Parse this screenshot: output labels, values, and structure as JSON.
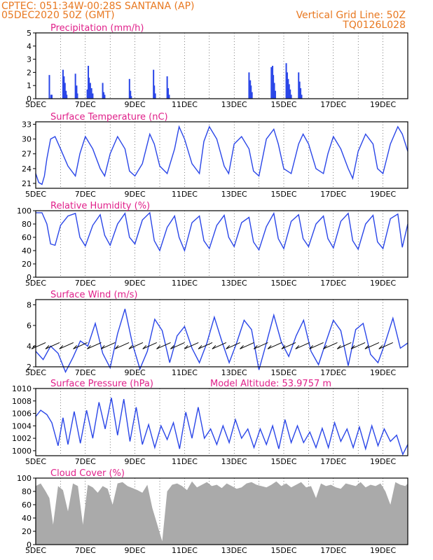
{
  "header": {
    "line1": "CPTEC:   051:34W-00:28S   SANTANA (AP)",
    "line2": "05DEC2020 50Z (GMT)",
    "grid_note": "Vertical Grid Line: 50Z",
    "code": "TQ0126L028"
  },
  "colors": {
    "header": "#e87820",
    "title": "#e0208a",
    "series": "#2a46e8",
    "cloud": "#aaaaaa"
  },
  "date_labels": [
    "5DEC",
    "7DEC",
    "9DEC",
    "11DEC",
    "13DEC",
    "15DEC",
    "17DEC",
    "19DEC"
  ],
  "chart_data": [
    {
      "type": "bar",
      "title": "Precipitation (mm/h)",
      "ylim": [
        0,
        5
      ],
      "yticks": [
        0,
        1,
        2,
        3,
        4,
        5
      ],
      "x": [
        0.55,
        0.62,
        0.65,
        1.1,
        1.14,
        1.18,
        1.22,
        1.25,
        1.6,
        1.65,
        1.68,
        2.08,
        2.12,
        2.15,
        2.2,
        2.25,
        2.3,
        2.7,
        2.74,
        2.78,
        3.78,
        3.82,
        3.85,
        4.75,
        4.78,
        4.82,
        5.3,
        5.34,
        5.38,
        8.6,
        8.65,
        8.68,
        8.72,
        9.5,
        9.55,
        9.58,
        9.62,
        9.66,
        10.1,
        10.14,
        10.18,
        10.22,
        10.26,
        10.3,
        10.6,
        10.64,
        10.68,
        10.72
      ],
      "values": [
        1.8,
        0.3,
        0.3,
        2.2,
        1.7,
        1.2,
        0.6,
        0.3,
        1.9,
        1.0,
        0.4,
        0.7,
        2.5,
        1.6,
        1.2,
        0.8,
        0.4,
        1.2,
        0.5,
        0.3,
        1.5,
        0.6,
        0.2,
        2.2,
        1.0,
        0.4,
        1.7,
        0.8,
        0.3,
        2.0,
        1.4,
        1.0,
        0.5,
        2.4,
        2.5,
        1.8,
        1.2,
        0.6,
        2.7,
        2.0,
        1.5,
        1.1,
        0.7,
        0.3,
        2.0,
        1.3,
        0.8,
        0.3
      ]
    },
    {
      "type": "line",
      "title": "Surface Temperature (nC)",
      "ylim": [
        20,
        33.5
      ],
      "yticks": [
        21,
        24,
        27,
        30,
        33
      ],
      "x": [
        0,
        0.12,
        0.25,
        0.35,
        0.45,
        0.6,
        0.78,
        1.0,
        1.3,
        1.6,
        1.78,
        2.0,
        2.3,
        2.6,
        2.78,
        3.0,
        3.3,
        3.6,
        3.78,
        4.0,
        4.3,
        4.6,
        4.78,
        5.0,
        5.3,
        5.6,
        5.78,
        6.0,
        6.3,
        6.6,
        6.78,
        7.0,
        7.3,
        7.6,
        7.78,
        8.0,
        8.3,
        8.6,
        8.78,
        9.0,
        9.3,
        9.6,
        9.78,
        10.0,
        10.3,
        10.6,
        10.78,
        11.0,
        11.3,
        11.6,
        11.78,
        12.0,
        12.3,
        12.6,
        12.78,
        13.0,
        13.3,
        13.6,
        13.78,
        14.0,
        14.3,
        14.6,
        14.78,
        15.0
      ],
      "values": [
        23,
        21.2,
        20.8,
        22.5,
        26,
        30,
        30.5,
        28,
        24.5,
        22.5,
        27,
        30.5,
        28,
        24,
        22.5,
        27,
        30.5,
        28,
        23.5,
        22.5,
        25,
        31,
        29,
        24.5,
        23,
        28,
        32.5,
        30,
        25,
        23,
        29.5,
        32.5,
        30,
        24.5,
        23,
        29,
        30.5,
        28,
        23.5,
        22.5,
        30,
        32,
        29,
        24,
        23,
        29,
        31,
        29,
        24,
        23,
        27,
        30.5,
        28,
        24,
        22,
        27.5,
        31,
        29,
        24,
        23,
        29,
        32.5,
        31,
        27.5
      ]
    },
    {
      "type": "line",
      "title": "Relative Humidity (%)",
      "ylim": [
        0,
        100
      ],
      "yticks": [
        0,
        20,
        40,
        60,
        80,
        100
      ],
      "x": [
        0,
        0.25,
        0.45,
        0.6,
        0.78,
        1.0,
        1.3,
        1.6,
        1.78,
        2.0,
        2.3,
        2.6,
        2.78,
        3.0,
        3.3,
        3.6,
        3.78,
        4.0,
        4.3,
        4.6,
        4.78,
        5.0,
        5.3,
        5.6,
        5.78,
        6.0,
        6.3,
        6.6,
        6.78,
        7.0,
        7.3,
        7.6,
        7.78,
        8.0,
        8.3,
        8.6,
        8.78,
        9.0,
        9.3,
        9.6,
        9.78,
        10.0,
        10.3,
        10.6,
        10.78,
        11.0,
        11.3,
        11.6,
        11.78,
        12.0,
        12.3,
        12.6,
        12.78,
        13.0,
        13.3,
        13.6,
        13.78,
        14.0,
        14.3,
        14.6,
        14.78,
        15.0
      ],
      "values": [
        97,
        97,
        80,
        50,
        48,
        78,
        92,
        96,
        60,
        47,
        78,
        94,
        63,
        48,
        80,
        96,
        60,
        50,
        86,
        97,
        55,
        40,
        75,
        92,
        60,
        40,
        82,
        92,
        55,
        43,
        78,
        93,
        60,
        46,
        82,
        90,
        53,
        41,
        76,
        96,
        58,
        43,
        84,
        94,
        58,
        46,
        80,
        92,
        58,
        44,
        84,
        96,
        55,
        42,
        80,
        93,
        53,
        43,
        88,
        95,
        45,
        80
      ]
    },
    {
      "type": "line",
      "title": "Surface Wind (m/s)",
      "ylim": [
        2,
        8.5
      ],
      "yticks": [
        2,
        4,
        6,
        8
      ],
      "x": [
        0,
        0.3,
        0.6,
        0.9,
        1.2,
        1.5,
        1.8,
        2.1,
        2.4,
        2.7,
        3.0,
        3.3,
        3.6,
        3.9,
        4.2,
        4.5,
        4.8,
        5.1,
        5.4,
        5.7,
        6.0,
        6.3,
        6.6,
        6.9,
        7.2,
        7.5,
        7.8,
        8.1,
        8.4,
        8.7,
        9.0,
        9.3,
        9.6,
        9.9,
        10.2,
        10.5,
        10.8,
        11.1,
        11.4,
        11.7,
        12.0,
        12.3,
        12.6,
        12.9,
        13.2,
        13.5,
        13.8,
        14.1,
        14.4,
        14.7,
        15.0
      ],
      "values": [
        3.5,
        2.7,
        4.0,
        3.3,
        1.5,
        2.9,
        4.5,
        4.0,
        6.2,
        3.3,
        1.9,
        5.2,
        7.6,
        4.2,
        1.8,
        3.5,
        6.6,
        5.5,
        2.4,
        5.0,
        5.9,
        3.8,
        2.4,
        4.3,
        6.8,
        4.5,
        2.4,
        4.3,
        6.5,
        5.6,
        1.7,
        4.3,
        7.0,
        4.4,
        3.0,
        5.0,
        6.5,
        3.5,
        2.2,
        4.4,
        6.5,
        5.5,
        2.1,
        5.6,
        6.2,
        3.2,
        2.4,
        4.4,
        6.7,
        3.8,
        4.3
      ]
    },
    {
      "type": "line",
      "title": "Surface Pressure (hPa)",
      "annotation": "Model Altitude: 53.9757 m",
      "ylim": [
        999.2,
        1010
      ],
      "yticks": [
        1000,
        1002,
        1004,
        1006,
        1008,
        1010
      ],
      "x": [
        0,
        0.2,
        0.45,
        0.65,
        0.9,
        1.1,
        1.3,
        1.55,
        1.8,
        2.05,
        2.3,
        2.55,
        2.8,
        3.05,
        3.3,
        3.55,
        3.8,
        4.05,
        4.3,
        4.55,
        4.8,
        5.05,
        5.3,
        5.55,
        5.8,
        6.05,
        6.3,
        6.55,
        6.8,
        7.05,
        7.3,
        7.55,
        7.8,
        8.05,
        8.3,
        8.55,
        8.8,
        9.05,
        9.3,
        9.55,
        9.8,
        10.05,
        10.3,
        10.55,
        10.8,
        11.05,
        11.3,
        11.55,
        11.8,
        12.05,
        12.3,
        12.55,
        12.8,
        13.05,
        13.3,
        13.55,
        13.8,
        14.05,
        14.3,
        14.55,
        14.8,
        15.0
      ],
      "values": [
        1005.5,
        1006.5,
        1005.8,
        1004.5,
        1000.8,
        1005.3,
        1001.0,
        1006.3,
        1001.2,
        1006.5,
        1002.0,
        1007.8,
        1003.5,
        1008.5,
        1002.5,
        1008.3,
        1001.5,
        1007.0,
        1001.0,
        1004.2,
        1000.5,
        1004.0,
        1001.8,
        1004.5,
        1000.3,
        1006.2,
        1002.0,
        1007.0,
        1002.0,
        1003.5,
        1001.0,
        1004.0,
        1001.3,
        1005.0,
        1002.0,
        1003.5,
        1000.5,
        1003.5,
        1001.0,
        1004.0,
        1000.3,
        1005.0,
        1001.3,
        1004.0,
        1001.3,
        1003.0,
        1000.5,
        1003.6,
        1000.5,
        1004.5,
        1001.5,
        1003.5,
        1000.5,
        1003.8,
        1000.3,
        1004.0,
        1000.8,
        1003.5,
        1001.5,
        1002.5,
        999.4,
        1001.0
      ]
    },
    {
      "type": "area",
      "title": "Cloud Cover (%)",
      "ylim": [
        0,
        100
      ],
      "yticks": [
        0,
        20,
        40,
        60,
        80,
        100
      ],
      "x": [
        0,
        0.2,
        0.4,
        0.55,
        0.7,
        0.9,
        1.1,
        1.3,
        1.5,
        1.7,
        1.9,
        2.1,
        2.3,
        2.5,
        2.7,
        2.9,
        3.1,
        3.3,
        3.5,
        3.7,
        3.9,
        4.1,
        4.3,
        4.5,
        4.7,
        4.9,
        5.1,
        5.3,
        5.5,
        5.7,
        5.9,
        6.1,
        6.3,
        6.5,
        6.7,
        6.9,
        7.1,
        7.3,
        7.5,
        7.7,
        7.9,
        8.1,
        8.3,
        8.5,
        8.7,
        8.9,
        9.1,
        9.3,
        9.5,
        9.7,
        9.9,
        10.1,
        10.3,
        10.5,
        10.7,
        10.9,
        11.1,
        11.3,
        11.5,
        11.7,
        11.9,
        12.1,
        12.3,
        12.5,
        12.7,
        12.9,
        13.1,
        13.3,
        13.5,
        13.7,
        13.9,
        14.1,
        14.3,
        14.5,
        14.7,
        14.9,
        15.0
      ],
      "values": [
        88,
        92,
        80,
        70,
        30,
        88,
        82,
        50,
        92,
        88,
        30,
        90,
        86,
        78,
        88,
        84,
        60,
        92,
        94,
        88,
        85,
        82,
        78,
        90,
        55,
        30,
        5,
        80,
        90,
        92,
        88,
        82,
        95,
        86,
        90,
        94,
        88,
        90,
        85,
        92,
        88,
        84,
        86,
        92,
        94,
        90,
        88,
        86,
        90,
        95,
        88,
        92,
        86,
        90,
        94,
        86,
        88,
        70,
        92,
        88,
        90,
        86,
        84,
        92,
        90,
        88,
        94,
        86,
        90,
        88,
        92,
        80,
        60,
        94,
        90,
        88,
        92
      ]
    }
  ]
}
